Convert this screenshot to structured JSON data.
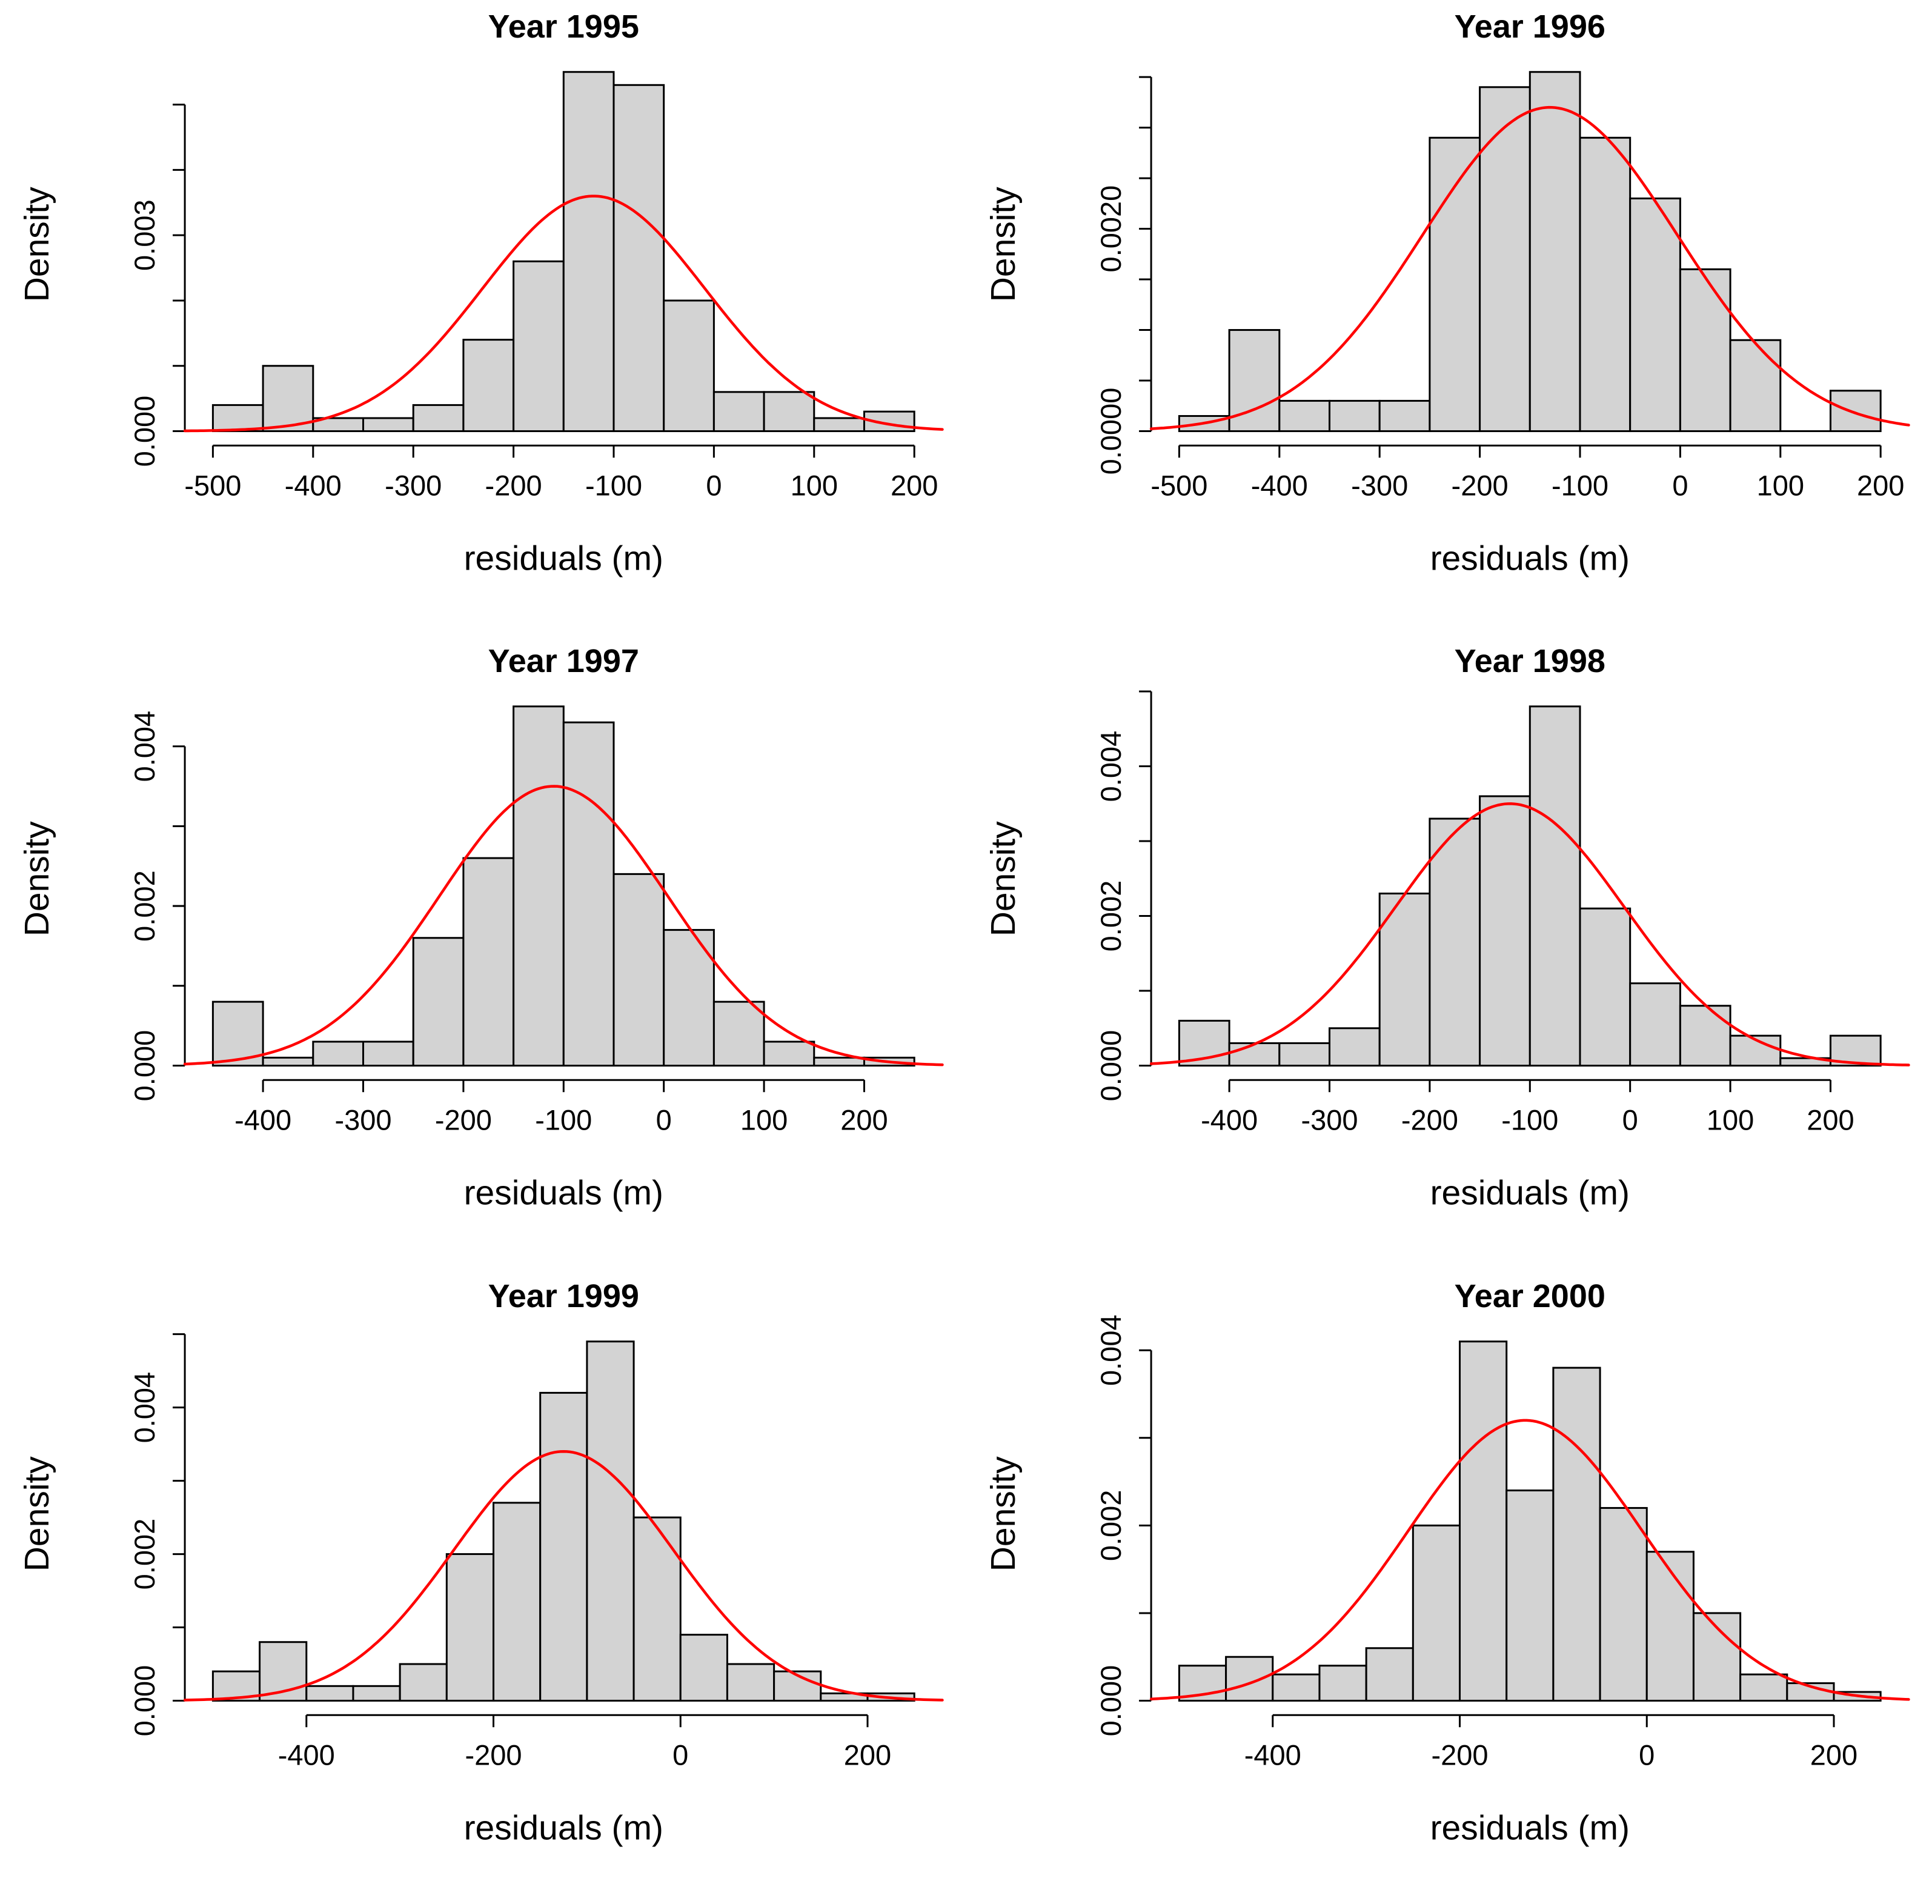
{
  "page": {
    "background": "#ffffff",
    "figure_type": "2x3 grid of histograms with fitted normal density curves"
  },
  "style": {
    "bar_fill": "#d3d3d3",
    "bar_border": "#000000",
    "axis_color": "#000000",
    "curve_color": "#ff0000",
    "text_color": "#000000"
  },
  "chart_data": [
    {
      "type": "bar",
      "subtype": "histogram-with-normal-curve",
      "title": "Year 1995",
      "xlabel": "residuals (m)",
      "ylabel": "Density",
      "grid": false,
      "legend": false,
      "bins": {
        "start": -500,
        "width": 50
      },
      "densities": [
        0.0004,
        0.001,
        0.0002,
        0.0002,
        0.0004,
        0.0014,
        0.0026,
        0.0055,
        0.0053,
        0.002,
        0.0006,
        0.0006,
        0.0002,
        0.0003
      ],
      "x_ticks": [
        -500,
        -400,
        -300,
        -200,
        -100,
        0,
        100,
        200
      ],
      "y_ticks": [
        0,
        0.001,
        0.002,
        0.003,
        0.004,
        0.005
      ],
      "y_tick_labels": [
        {
          "value": 0,
          "label": "0.000"
        },
        {
          "value": 0.003,
          "label": "0.003"
        }
      ],
      "curve": {
        "shape": "normal",
        "mean": -120,
        "sd": 111,
        "peak": 0.0036
      }
    },
    {
      "type": "bar",
      "subtype": "histogram-with-normal-curve",
      "title": "Year 1996",
      "xlabel": "residuals (m)",
      "ylabel": "Density",
      "grid": false,
      "legend": false,
      "bins": {
        "start": -500,
        "width": 50
      },
      "densities": [
        0.00015,
        0.001,
        0.0003,
        0.0003,
        0.0003,
        0.0029,
        0.0034,
        0.00355,
        0.0029,
        0.0023,
        0.0016,
        0.0009,
        0,
        0.0004
      ],
      "x_ticks": [
        -500,
        -400,
        -300,
        -200,
        -100,
        0,
        100,
        200
      ],
      "y_ticks": [
        0,
        0.0005,
        0.001,
        0.0015,
        0.002,
        0.0025,
        0.003,
        0.0035
      ],
      "y_tick_labels": [
        {
          "value": 0,
          "label": "0.0000"
        },
        {
          "value": 0.002,
          "label": "0.0020"
        }
      ],
      "curve": {
        "shape": "normal",
        "mean": -130,
        "sd": 127,
        "peak": 0.0032
      }
    },
    {
      "type": "bar",
      "subtype": "histogram-with-normal-curve",
      "title": "Year 1997",
      "xlabel": "residuals (m)",
      "ylabel": "Density",
      "grid": false,
      "legend": false,
      "bins": {
        "start": -450,
        "width": 50
      },
      "densities": [
        0.0008,
        0.0001,
        0.0003,
        0.0003,
        0.0016,
        0.0026,
        0.0045,
        0.0043,
        0.0024,
        0.0017,
        0.0008,
        0.0003,
        0.0001,
        0.0001
      ],
      "x_ticks": [
        -400,
        -300,
        -200,
        -100,
        0,
        100,
        200
      ],
      "y_ticks": [
        0,
        0.001,
        0.002,
        0.003,
        0.004
      ],
      "y_tick_labels": [
        {
          "value": 0,
          "label": "0.000"
        },
        {
          "value": 0.002,
          "label": "0.002"
        },
        {
          "value": 0.004,
          "label": "0.004"
        }
      ],
      "curve": {
        "shape": "normal",
        "mean": -110,
        "sd": 114,
        "peak": 0.0035
      }
    },
    {
      "type": "bar",
      "subtype": "histogram-with-normal-curve",
      "title": "Year 1998",
      "xlabel": "residuals (m)",
      "ylabel": "Density",
      "grid": false,
      "legend": false,
      "bins": {
        "start": -450,
        "width": 50
      },
      "densities": [
        0.0006,
        0.0003,
        0.0003,
        0.0005,
        0.0023,
        0.0033,
        0.0036,
        0.0048,
        0.0021,
        0.0011,
        0.0008,
        0.0004,
        0.0001,
        0.0004
      ],
      "x_ticks": [
        -400,
        -300,
        -200,
        -100,
        0,
        100,
        200
      ],
      "y_ticks": [
        0,
        0.001,
        0.002,
        0.003,
        0.004,
        0.005
      ],
      "y_tick_labels": [
        {
          "value": 0,
          "label": "0.000"
        },
        {
          "value": 0.002,
          "label": "0.002"
        },
        {
          "value": 0.004,
          "label": "0.004"
        }
      ],
      "curve": {
        "shape": "normal",
        "mean": -120,
        "sd": 114,
        "peak": 0.0035
      }
    },
    {
      "type": "bar",
      "subtype": "histogram-with-normal-curve",
      "title": "Year 1999",
      "xlabel": "residuals (m)",
      "ylabel": "Density",
      "grid": false,
      "legend": false,
      "bins": {
        "start": -500,
        "width": 50
      },
      "densities": [
        0.0004,
        0.0008,
        0.0002,
        0.0002,
        0.0005,
        0.002,
        0.0027,
        0.0042,
        0.0049,
        0.0025,
        0.0009,
        0.0005,
        0.0004,
        0.0001,
        0.0001
      ],
      "x_ticks": [
        -400,
        -200,
        0,
        200
      ],
      "y_ticks": [
        0,
        0.001,
        0.002,
        0.003,
        0.004,
        0.005
      ],
      "y_tick_labels": [
        {
          "value": 0,
          "label": "0.000"
        },
        {
          "value": 0.002,
          "label": "0.002"
        },
        {
          "value": 0.004,
          "label": "0.004"
        }
      ],
      "curve": {
        "shape": "normal",
        "mean": -125,
        "sd": 117,
        "peak": 0.0034
      }
    },
    {
      "type": "bar",
      "subtype": "histogram-with-normal-curve",
      "title": "Year 2000",
      "xlabel": "residuals (m)",
      "ylabel": "Density",
      "grid": false,
      "legend": false,
      "bins": {
        "start": -500,
        "width": 50
      },
      "densities": [
        0.0004,
        0.0005,
        0.0003,
        0.0004,
        0.0006,
        0.002,
        0.0041,
        0.0024,
        0.0038,
        0.0022,
        0.0017,
        0.001,
        0.0003,
        0.0002,
        0.0001
      ],
      "x_ticks": [
        -400,
        -200,
        0,
        200
      ],
      "y_ticks": [
        0,
        0.001,
        0.002,
        0.003,
        0.004
      ],
      "y_tick_labels": [
        {
          "value": 0,
          "label": "0.000"
        },
        {
          "value": 0.002,
          "label": "0.002"
        },
        {
          "value": 0.004,
          "label": "0.004"
        }
      ],
      "curve": {
        "shape": "normal",
        "mean": -130,
        "sd": 125,
        "peak": 0.0032
      }
    }
  ]
}
